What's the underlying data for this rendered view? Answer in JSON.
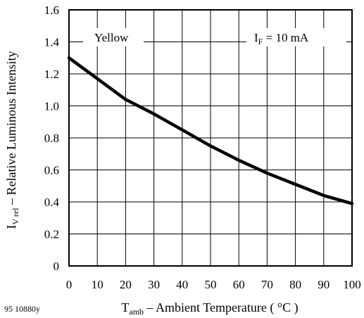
{
  "figure_id": "95 10880y",
  "chart_data": {
    "type": "line",
    "title": "",
    "xlabel": {
      "main": "T",
      "sub": "amb",
      "rest": " – Ambient Temperature ( °C )"
    },
    "ylabel": {
      "main": "I",
      "sub": "V rel",
      "rest": " – Relative Luminous Intensity"
    },
    "annotations": {
      "series_label": "Yellow",
      "condition": {
        "main": "I",
        "sub": "F",
        "rest": " = 10 mA"
      }
    },
    "xlim": [
      0,
      100
    ],
    "ylim": [
      0,
      1.6
    ],
    "xticks": [
      0,
      10,
      20,
      30,
      40,
      50,
      60,
      70,
      80,
      90,
      100
    ],
    "yticks": [
      0,
      0.2,
      0.4,
      0.6,
      0.8,
      1.0,
      1.2,
      1.4,
      1.6
    ],
    "ytick_labels": [
      "0",
      "0.2",
      "0.4",
      "0.6",
      "0.8",
      "1.0",
      "1.2",
      "1.4",
      "1.6"
    ],
    "grid": true,
    "series": [
      {
        "color": "#000000",
        "x": [
          0,
          10,
          20,
          30,
          40,
          50,
          60,
          70,
          80,
          90,
          100
        ],
        "y": [
          1.3,
          1.17,
          1.04,
          0.95,
          0.85,
          0.75,
          0.66,
          0.58,
          0.51,
          0.44,
          0.39
        ]
      }
    ]
  }
}
